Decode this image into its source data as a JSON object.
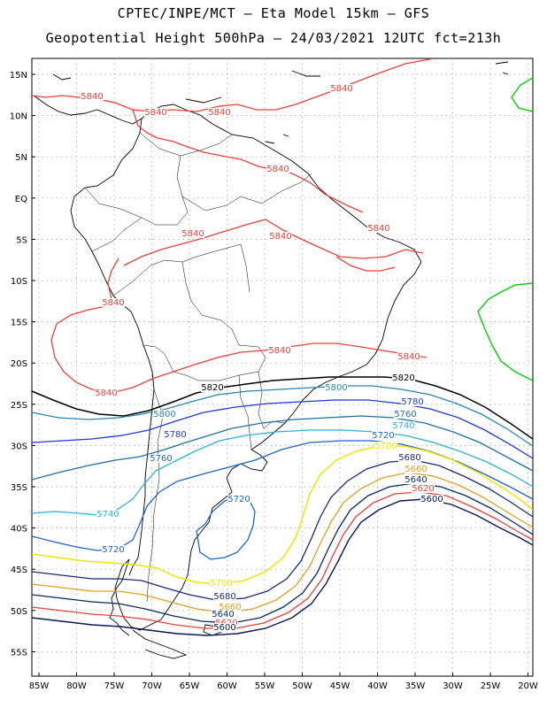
{
  "title_line1": "CPTEC/INPE/MCT –  Eta Model 15km – GFS",
  "title_line2": "Geopotential Height 500hPa – 24/03/2021 12UTC fct=213h",
  "lat_ticks": [
    "15N",
    "10N",
    "5N",
    "EQ",
    "5S",
    "10S",
    "15S",
    "20S",
    "25S",
    "30S",
    "35S",
    "40S",
    "45S",
    "50S",
    "55S"
  ],
  "lon_ticks": [
    "85W",
    "80W",
    "75W",
    "70W",
    "65W",
    "60W",
    "55W",
    "50W",
    "45W",
    "40W",
    "35W",
    "30W",
    "25W",
    "20W"
  ],
  "colors": {
    "c5840": "#e8403a",
    "c5820": "#000000",
    "c5800": "#2a86b0",
    "c5780": "#2038d8",
    "c5760": "#1f6fa3",
    "c5740": "#2bb2d6",
    "c5720": "#1e64c8",
    "c5700": "#f2e600",
    "c5680": "#1a2a6e",
    "c5660": "#e0a020",
    "c5640": "#0a2a5a",
    "c5620": "#e8403a",
    "c5600": "#081850",
    "green": "#00d000"
  },
  "contour_labels": [
    {
      "text": "5840",
      "key": "c5840"
    },
    {
      "text": "5840",
      "key": "c5840"
    },
    {
      "text": "5840",
      "key": "c5840"
    },
    {
      "text": "5840",
      "key": "c5840"
    },
    {
      "text": "5840",
      "key": "c5840"
    },
    {
      "text": "5840",
      "key": "c5840"
    },
    {
      "text": "5840",
      "key": "c5840"
    },
    {
      "text": "5840",
      "key": "c5840"
    },
    {
      "text": "5840",
      "key": "c5840"
    },
    {
      "text": "5840",
      "key": "c5840"
    },
    {
      "text": "5840",
      "key": "c5840"
    },
    {
      "text": "5840",
      "key": "c5840"
    },
    {
      "text": "5820",
      "key": "c5820"
    },
    {
      "text": "5820",
      "key": "c5820"
    },
    {
      "text": "5800",
      "key": "c5800"
    },
    {
      "text": "5800",
      "key": "c5800"
    },
    {
      "text": "5780",
      "key": "c5780"
    },
    {
      "text": "5780",
      "key": "c5780"
    },
    {
      "text": "5760",
      "key": "c5760"
    },
    {
      "text": "5760",
      "key": "c5760"
    },
    {
      "text": "5740",
      "key": "c5740"
    },
    {
      "text": "5740",
      "key": "c5740"
    },
    {
      "text": "5720",
      "key": "c5720"
    },
    {
      "text": "5720",
      "key": "c5720"
    },
    {
      "text": "5720",
      "key": "c5720"
    },
    {
      "text": "5700",
      "key": "c5700"
    },
    {
      "text": "5700",
      "key": "c5700"
    },
    {
      "text": "5680",
      "key": "c5680"
    },
    {
      "text": "5680",
      "key": "c5680"
    },
    {
      "text": "5660",
      "key": "c5660"
    },
    {
      "text": "5660",
      "key": "c5660"
    },
    {
      "text": "5640",
      "key": "c5640"
    },
    {
      "text": "5640",
      "key": "c5640"
    },
    {
      "text": "5620",
      "key": "c5620"
    },
    {
      "text": "5620",
      "key": "c5620"
    },
    {
      "text": "5600",
      "key": "c5600"
    },
    {
      "text": "5600",
      "key": "c5600"
    }
  ]
}
